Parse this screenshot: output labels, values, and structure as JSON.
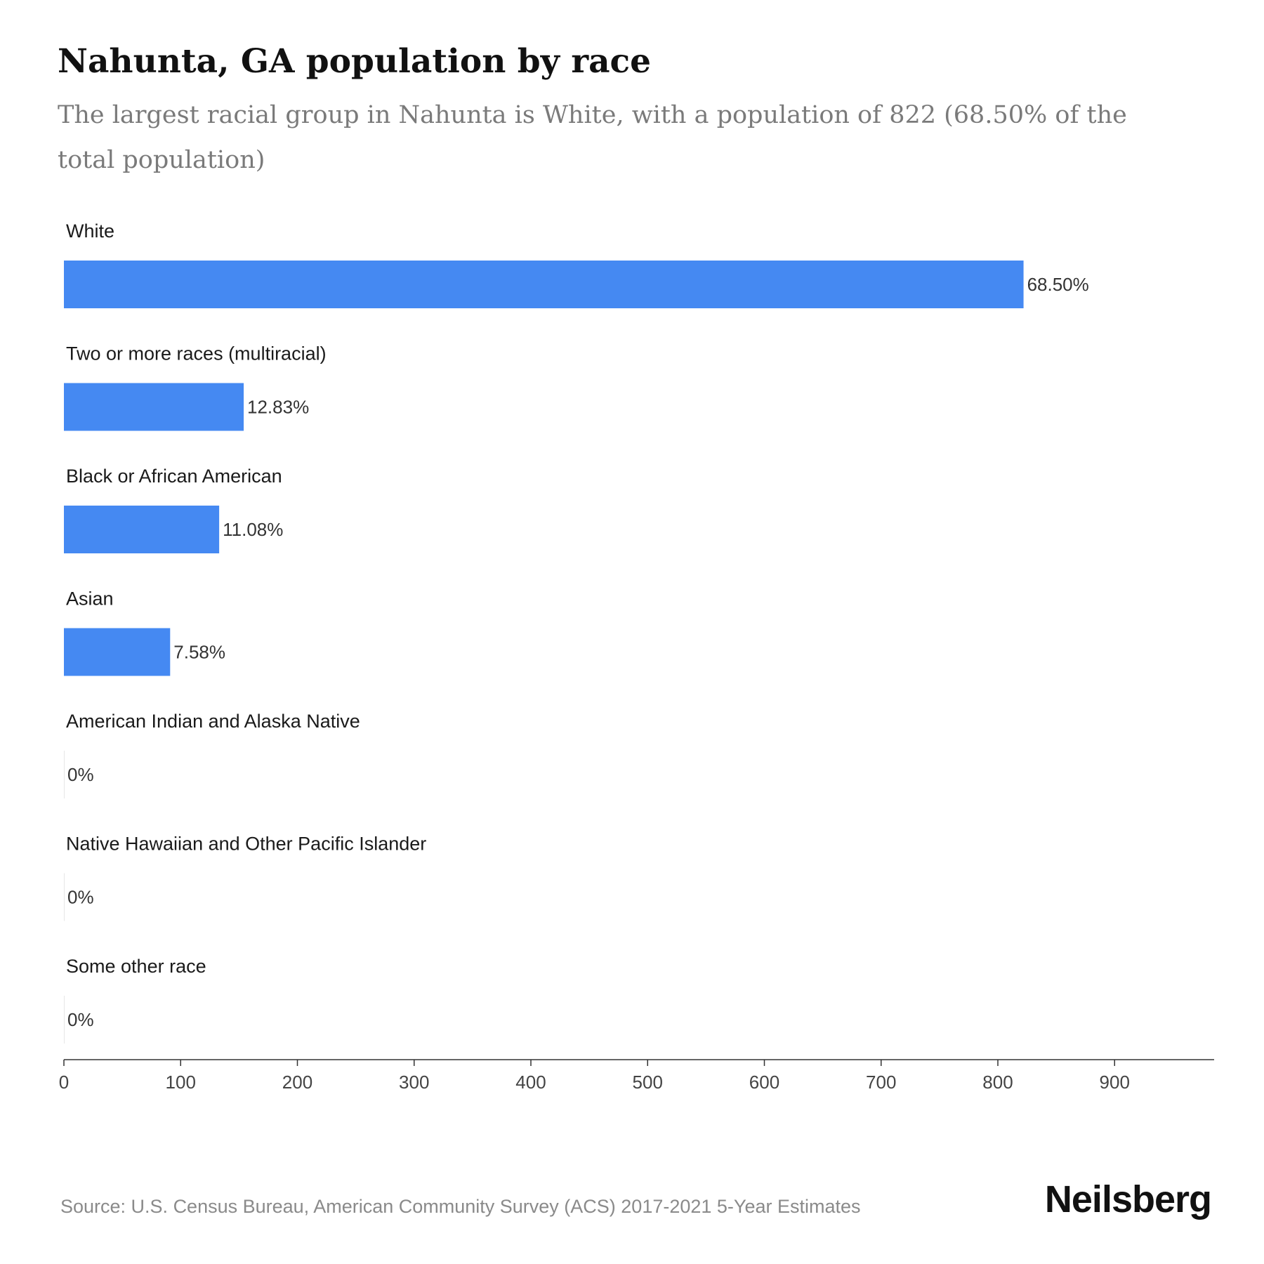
{
  "title": "Nahunta, GA population by race",
  "subtitle": "The largest racial group in Nahunta is White, with a population of 822 (68.50% of the total population)",
  "source": "Source: U.S. Census Bureau, American Community Survey (ACS) 2017-2021 5-Year Estimates",
  "brand": "Neilsberg",
  "colors": {
    "bar": "#4589f2",
    "axis": "#333333"
  },
  "chart_data": {
    "type": "bar",
    "orientation": "horizontal",
    "categories": [
      "White",
      "Two or more races (multiracial)",
      "Black or African American",
      "Asian",
      "American Indian and Alaska Native",
      "Native Hawaiian and Other Pacific Islander",
      "Some other race"
    ],
    "values": [
      822,
      154,
      133,
      91,
      0,
      0,
      0
    ],
    "value_labels": [
      "68.50%",
      "12.83%",
      "11.08%",
      "7.58%",
      "0%",
      "0%",
      "0%"
    ],
    "x_ticks": [
      0,
      100,
      200,
      300,
      400,
      500,
      600,
      700,
      800,
      900
    ],
    "xlim": [
      0,
      985
    ],
    "grid": false,
    "legend": "none"
  }
}
